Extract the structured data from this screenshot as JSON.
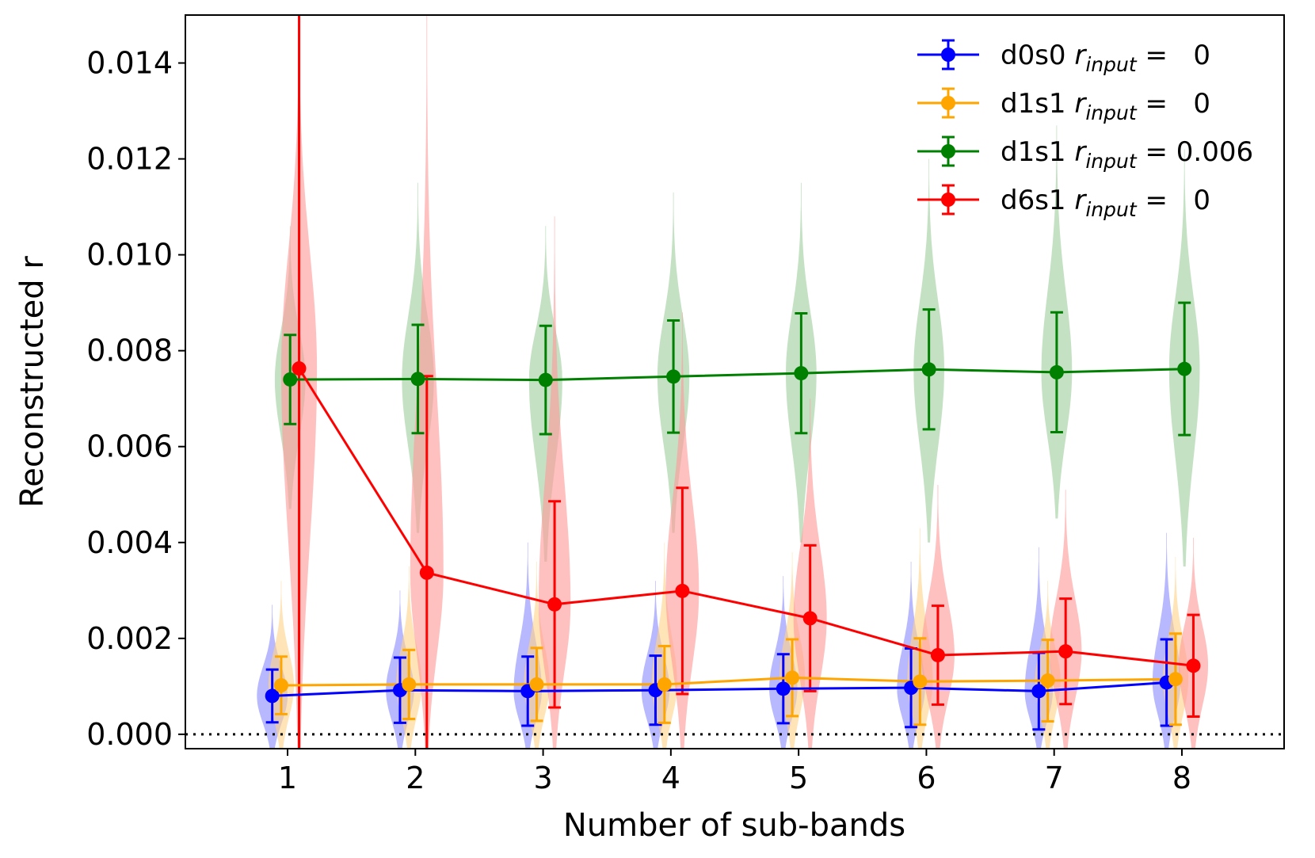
{
  "chart_data": {
    "type": "line",
    "xlabel": "Number of sub-bands",
    "ylabel": "Reconstructed r",
    "xlim": [
      0.2,
      8.8
    ],
    "ylim": [
      -0.0003,
      0.015
    ],
    "x_ticks": [
      1,
      2,
      3,
      4,
      5,
      6,
      7,
      8
    ],
    "y_ticks": [
      "0.000",
      "0.002",
      "0.004",
      "0.006",
      "0.008",
      "0.010",
      "0.012",
      "0.014"
    ],
    "y_tick_values": [
      0,
      0.002,
      0.004,
      0.006,
      0.008,
      0.01,
      0.012,
      0.014
    ],
    "reference_line": {
      "y": 0,
      "style": "dotted"
    },
    "legend_position": "top-right",
    "series": [
      {
        "id": "d0s0",
        "label_main": "d0s0",
        "label_var": "r",
        "label_sub": "input",
        "label_value": "=   0",
        "color": "#0000ff",
        "violin_color": "#8c8cff",
        "offset": -0.12,
        "x": [
          1,
          2,
          3,
          4,
          5,
          6,
          7,
          8
        ],
        "y": [
          0.0008,
          0.00092,
          0.0009,
          0.00092,
          0.00095,
          0.00097,
          0.0009,
          0.00108
        ],
        "err": [
          0.00055,
          0.00068,
          0.00072,
          0.00072,
          0.00072,
          0.00082,
          0.0008,
          0.0009
        ],
        "violin_min": [
          -0.0005,
          -0.0005,
          -0.0005,
          -0.0005,
          -0.0005,
          -0.0005,
          -0.0005,
          -0.0005
        ],
        "violin_max": [
          0.0027,
          0.003,
          0.004,
          0.0032,
          0.0033,
          0.0036,
          0.0039,
          0.0042
        ],
        "violin_width": [
          0.24,
          0.22,
          0.22,
          0.22,
          0.22,
          0.22,
          0.22,
          0.22
        ]
      },
      {
        "id": "d1s1-zero",
        "label_main": "d1s1",
        "label_var": "r",
        "label_sub": "input",
        "label_value": "=   0",
        "color": "#ffa500",
        "violin_color": "#ffd48a",
        "offset": -0.05,
        "x": [
          1,
          2,
          3,
          4,
          5,
          6,
          7,
          8
        ],
        "y": [
          0.00102,
          0.00104,
          0.00104,
          0.00104,
          0.00118,
          0.0011,
          0.00112,
          0.00115
        ],
        "err": [
          0.0006,
          0.00072,
          0.00076,
          0.0008,
          0.0008,
          0.0009,
          0.00085,
          0.00095
        ],
        "violin_min": [
          -0.0005,
          -0.0005,
          -0.0005,
          -0.0005,
          -0.0005,
          -0.0005,
          -0.0005,
          -0.0005
        ],
        "violin_max": [
          0.0032,
          0.0035,
          0.0036,
          0.004,
          0.0038,
          0.0043,
          0.0032,
          0.0037
        ],
        "violin_width": [
          0.2,
          0.2,
          0.2,
          0.2,
          0.2,
          0.2,
          0.2,
          0.2
        ]
      },
      {
        "id": "d1s1-r006",
        "label_main": "d1s1",
        "label_var": "r",
        "label_sub": "input",
        "label_value": "= 0.006",
        "color": "#008000",
        "violin_color": "#9fcf9f",
        "offset": 0.02,
        "x": [
          1,
          2,
          3,
          4,
          5,
          6,
          7,
          8
        ],
        "y": [
          0.0074,
          0.00741,
          0.00739,
          0.00746,
          0.00753,
          0.00761,
          0.00755,
          0.00762
        ],
        "err": [
          0.00093,
          0.00113,
          0.00113,
          0.00117,
          0.00125,
          0.00125,
          0.00125,
          0.00138
        ],
        "violin_min": [
          0.0047,
          0.0042,
          0.0036,
          0.0042,
          0.004,
          0.004,
          0.0045,
          0.0035
        ],
        "violin_max": [
          0.0106,
          0.0115,
          0.0106,
          0.0113,
          0.0115,
          0.012,
          0.0127,
          0.0122
        ],
        "violin_width": [
          0.24,
          0.25,
          0.26,
          0.25,
          0.24,
          0.24,
          0.24,
          0.24
        ]
      },
      {
        "id": "d6s1",
        "label_main": "d6s1",
        "label_var": "r",
        "label_sub": "input",
        "label_value": "=   0",
        "color": "#ff0000",
        "violin_color": "#ff9a9a",
        "offset": 0.09,
        "x": [
          1,
          2,
          3,
          4,
          5,
          6,
          7,
          8
        ],
        "y": [
          0.00763,
          0.00337,
          0.00271,
          0.00299,
          0.00242,
          0.00165,
          0.00173,
          0.00143
        ],
        "err": [
          0.008,
          0.0041,
          0.00215,
          0.00215,
          0.00152,
          0.00103,
          0.0011,
          0.00106
        ],
        "violin_min": [
          -0.0005,
          -0.0005,
          -0.0005,
          -0.0005,
          -0.0005,
          -0.0005,
          -0.0005,
          -0.0005
        ],
        "violin_max": [
          0.0152,
          0.015,
          0.0108,
          0.0088,
          0.007,
          0.0052,
          0.0051,
          0.0041
        ],
        "violin_width": [
          0.28,
          0.26,
          0.25,
          0.26,
          0.26,
          0.26,
          0.25,
          0.23
        ]
      }
    ]
  }
}
